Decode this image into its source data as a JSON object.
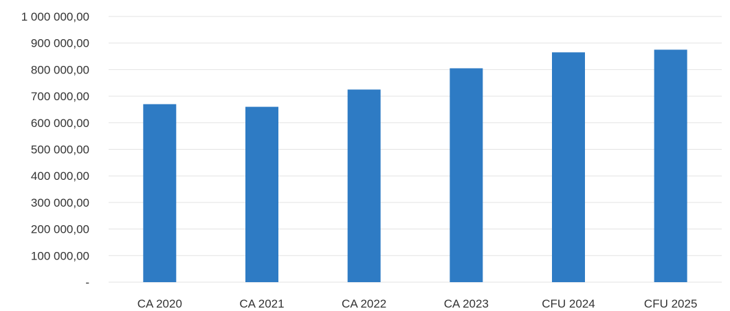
{
  "chart_data": {
    "type": "bar",
    "categories": [
      "CA 2020",
      "CA 2021",
      "CA 2022",
      "CA 2023",
      "CFU 2024",
      "CFU 2025"
    ],
    "values": [
      670000,
      660000,
      725000,
      805000,
      865000,
      875000
    ],
    "y_tick_values": [
      0,
      100000,
      200000,
      300000,
      400000,
      500000,
      600000,
      700000,
      800000,
      900000,
      1000000
    ],
    "y_tick_labels": [
      "-",
      "100 000,00",
      "200 000,00",
      "300 000,00",
      "400 000,00",
      "500 000,00",
      "600 000,00",
      "700 000,00",
      "800 000,00",
      "900 000,00",
      "1 000 000,00"
    ],
    "ylim": [
      0,
      1000000
    ],
    "title": "",
    "xlabel": "",
    "ylabel": "",
    "grid": true,
    "legend": "none",
    "colors": {
      "bar": "#2e7bc4",
      "grid": "#e3e3e3",
      "text": "#333333"
    }
  }
}
